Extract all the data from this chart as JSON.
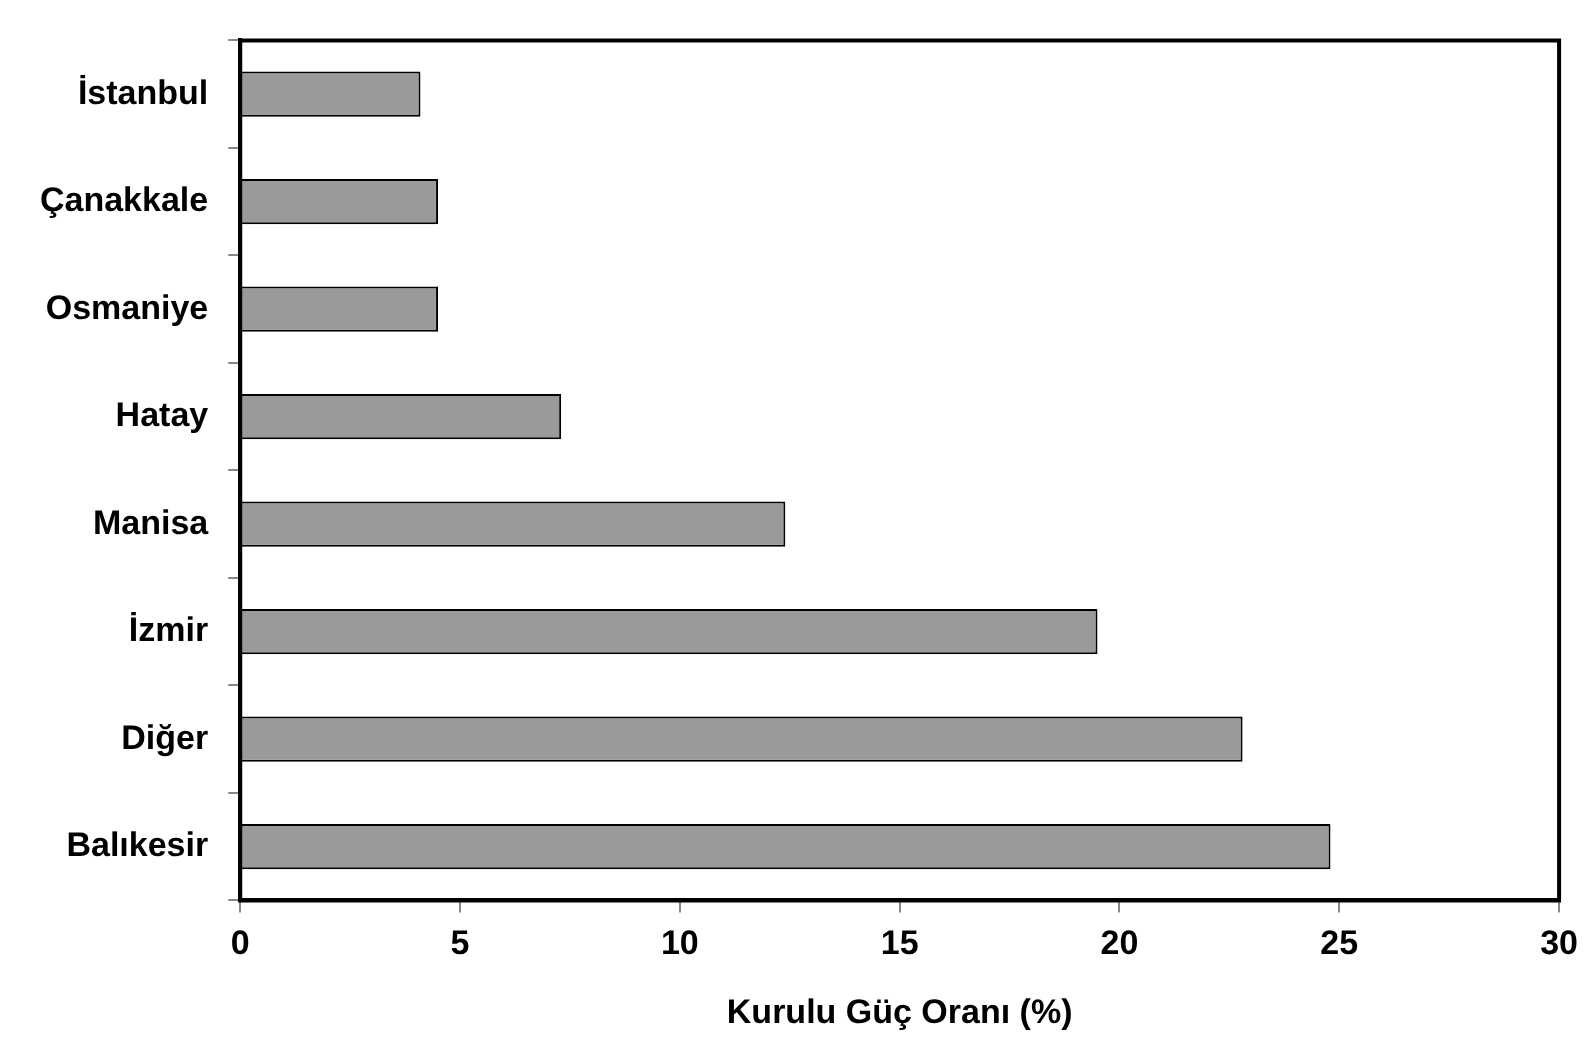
{
  "chart_data": {
    "type": "bar",
    "orientation": "horizontal",
    "xlabel": "Kurulu Güç Oranı (%)",
    "categories": [
      "İstanbul",
      "Çanakkale",
      "Osmaniye",
      "Hatay",
      "Manisa",
      "İzmir",
      "Diğer",
      "Balıkesir"
    ],
    "values": [
      4.1,
      4.5,
      4.5,
      7.3,
      12.4,
      19.5,
      22.8,
      24.8
    ],
    "color": "#9a9a9a",
    "xlim": [
      0,
      30
    ],
    "xticks": [
      0,
      5,
      10,
      15,
      20,
      25,
      30
    ],
    "grid": false,
    "legend": false
  }
}
